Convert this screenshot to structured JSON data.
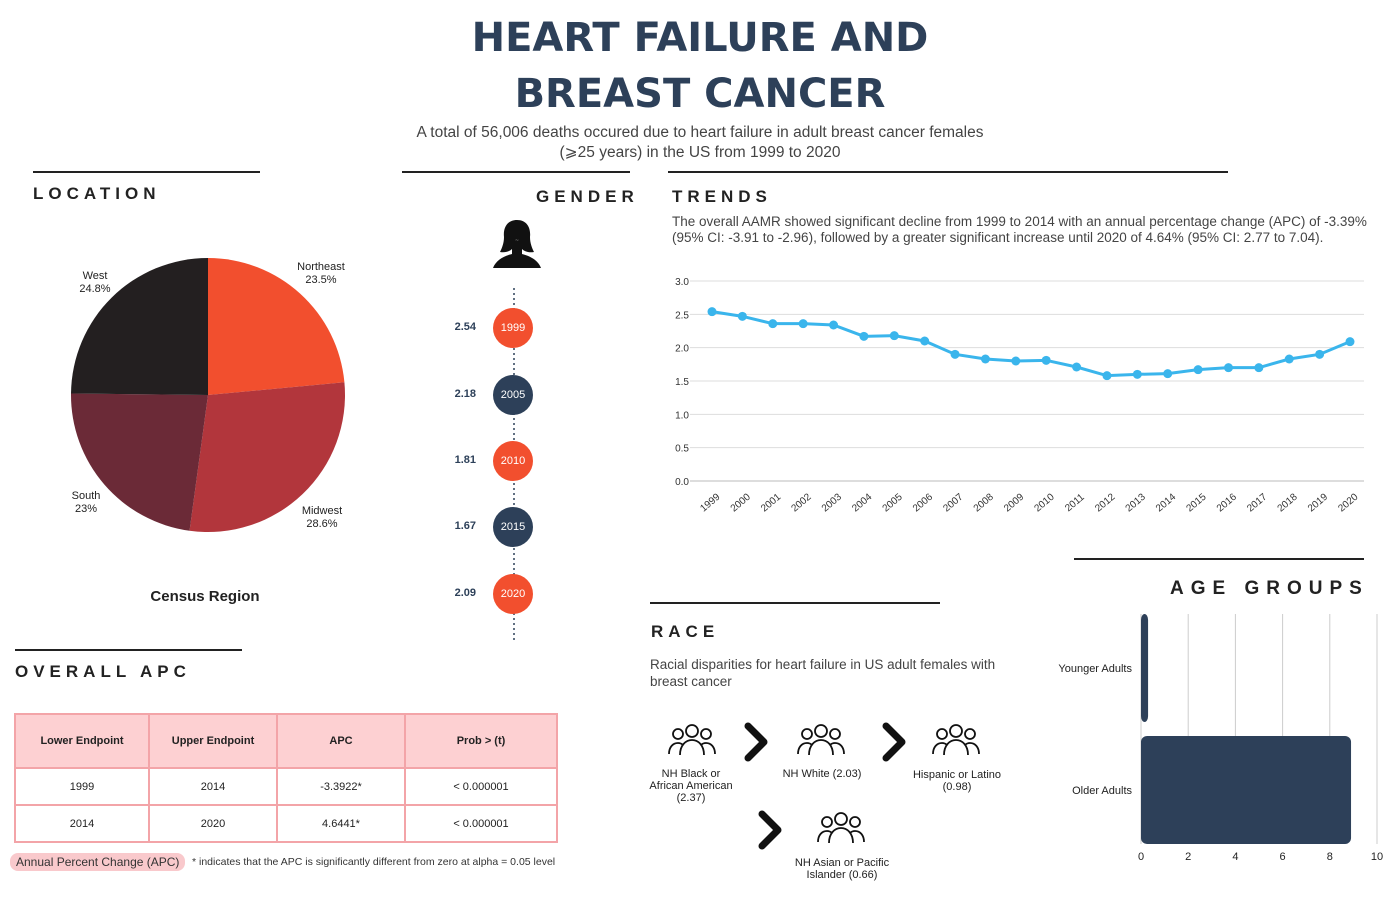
{
  "title_line1": "HEART FAILURE AND",
  "title_line2": "BREAST CANCER",
  "subtitle_line1": "A total of 56,006 deaths occured due to heart failure in adult breast cancer females",
  "subtitle_line2": "(⩾25 years) in the US from 1999 to 2020",
  "location": {
    "heading": "LOCATION",
    "caption": "Census Region",
    "chart_data": {
      "type": "pie",
      "title": "Census Region",
      "labels": [
        "Northeast",
        "Midwest",
        "South",
        "West"
      ],
      "values": [
        23.5,
        28.6,
        23,
        24.8
      ],
      "value_labels": [
        "23.5%",
        "28.6%",
        "23%",
        "24.8%"
      ],
      "colors": [
        "#f24f2e",
        "#b2363c",
        "#6b2a37",
        "#231f20"
      ]
    }
  },
  "gender": {
    "heading": "GENDER",
    "icon": "female-silhouette-icon",
    "timeline": [
      {
        "year": "1999",
        "value": "2.54",
        "color": "#f24f2e"
      },
      {
        "year": "2005",
        "value": "2.18",
        "color": "#2d4059"
      },
      {
        "year": "2010",
        "value": "1.81",
        "color": "#f24f2e"
      },
      {
        "year": "2015",
        "value": "1.67",
        "color": "#2d4059"
      },
      {
        "year": "2020",
        "value": "2.09",
        "color": "#f24f2e"
      }
    ]
  },
  "trends": {
    "heading": "TRENDS",
    "text_line1": "The overall AAMR showed significant decline from 1999 to 2014 with an annual percentage change (APC) of -3.39%",
    "text_line2": "(95% CI: -3.91 to -2.96), followed by a greater significant increase until 2020 of 4.64% (95% CI: 2.77 to 7.04).",
    "chart_data": {
      "type": "line",
      "x": [
        "1999",
        "2000",
        "2001",
        "2002",
        "2003",
        "2004",
        "2005",
        "2006",
        "2007",
        "2008",
        "2009",
        "2010",
        "2011",
        "2012",
        "2013",
        "2014",
        "2015",
        "2016",
        "2017",
        "2018",
        "2019",
        "2020"
      ],
      "series": [
        {
          "name": "AAMR",
          "values": [
            2.54,
            2.47,
            2.36,
            2.36,
            2.34,
            2.17,
            2.18,
            2.1,
            1.9,
            1.83,
            1.8,
            1.81,
            1.71,
            1.58,
            1.6,
            1.61,
            1.67,
            1.7,
            1.7,
            1.83,
            1.9,
            2.09
          ]
        }
      ],
      "ylim": [
        0,
        3.0
      ],
      "yticks": [
        "0.0",
        "0.5",
        "1.0",
        "1.5",
        "2.0",
        "2.5",
        "3.0"
      ],
      "color": "#3ab5ec",
      "grid": true
    }
  },
  "overall_apc": {
    "heading": "OVERALL APC",
    "headers": [
      "Lower Endpoint",
      "Upper Endpoint",
      "APC",
      "Prob > (t)"
    ],
    "rows": [
      [
        "1999",
        "2014",
        "-3.3922*",
        "< 0.000001"
      ],
      [
        "2014",
        "2020",
        "4.6441*",
        "< 0.000001"
      ]
    ],
    "badge": "Annual Percent Change (APC)",
    "footnote": "* indicates that the APC is significantly different from zero at alpha = 0.05 level"
  },
  "race": {
    "heading": "RACE",
    "text_line1": "Racial disparities for heart failure in US adult females with",
    "text_line2": "breast cancer",
    "groups": [
      {
        "line1": "NH Black or",
        "line2": "African American",
        "line3": "(2.37)"
      },
      {
        "line1": "NH White (2.03)"
      },
      {
        "line1": "Hispanic or Latino",
        "line2": "(0.98)"
      },
      {
        "line1": "NH Asian or Pacific",
        "line2": "Islander (0.66)"
      }
    ],
    "chevron": "❯"
  },
  "age_groups": {
    "heading": "AGE GROUPS",
    "chart_data": {
      "type": "bar",
      "orientation": "horizontal",
      "categories": [
        "Younger Adults",
        "Older Adults"
      ],
      "values": [
        0.3,
        8.9
      ],
      "xlim": [
        0,
        10
      ],
      "xticks": [
        "0",
        "2",
        "4",
        "6",
        "8",
        "10"
      ],
      "color": "#2d4059"
    }
  }
}
